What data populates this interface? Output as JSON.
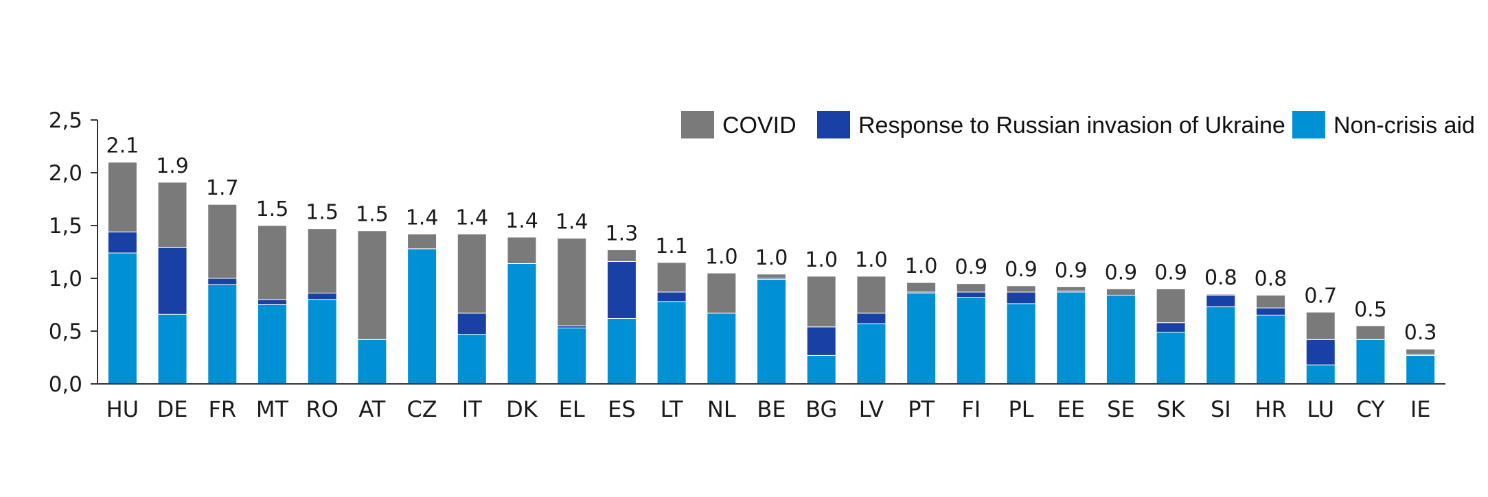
{
  "chart_data": {
    "type": "bar",
    "stacked": true,
    "title": "",
    "xlabel": "",
    "ylabel": "",
    "ylim": [
      0,
      2.5
    ],
    "y_ticks": [
      "0,0",
      "0,5",
      "1,0",
      "1,5",
      "2,0",
      "2,5"
    ],
    "grid": false,
    "legend_position": "top-right",
    "categories": [
      "HU",
      "DE",
      "FR",
      "MT",
      "RO",
      "AT",
      "CZ",
      "IT",
      "DK",
      "EL",
      "ES",
      "LT",
      "NL",
      "BE",
      "BG",
      "LV",
      "PT",
      "FI",
      "PL",
      "EE",
      "SE",
      "SK",
      "SI",
      "HR",
      "LU",
      "CY",
      "IE"
    ],
    "totals": [
      "2.1",
      "1.9",
      "1.7",
      "1.5",
      "1.5",
      "1.5",
      "1.4",
      "1.4",
      "1.4",
      "1.4",
      "1.3",
      "1.1",
      "1.0",
      "1.0",
      "1.0",
      "1.0",
      "1.0",
      "0.9",
      "0.9",
      "0.9",
      "0.9",
      "0.9",
      "0.8",
      "0.8",
      "0.7",
      "0.5",
      "0.3"
    ],
    "series": [
      {
        "name": "Non-crisis aid",
        "color": "#0091d5",
        "values": [
          1.24,
          0.66,
          0.94,
          0.75,
          0.8,
          0.42,
          1.28,
          0.47,
          1.14,
          0.53,
          0.62,
          0.78,
          0.67,
          0.99,
          0.27,
          0.57,
          0.86,
          0.82,
          0.76,
          0.87,
          0.84,
          0.49,
          0.73,
          0.65,
          0.18,
          0.42,
          0.27
        ]
      },
      {
        "name": "Response to Russian invasion of Ukraine",
        "color": "#1941a5",
        "values": [
          0.2,
          0.63,
          0.06,
          0.05,
          0.06,
          0.0,
          0.0,
          0.2,
          0.0,
          0.02,
          0.54,
          0.09,
          0.0,
          0.01,
          0.27,
          0.1,
          0.01,
          0.05,
          0.11,
          0.01,
          0.0,
          0.09,
          0.11,
          0.07,
          0.24,
          0.0,
          0.01
        ]
      },
      {
        "name": "COVID",
        "color": "#7a7a7a",
        "values": [
          0.66,
          0.62,
          0.7,
          0.7,
          0.61,
          1.03,
          0.14,
          0.75,
          0.25,
          0.83,
          0.11,
          0.28,
          0.38,
          0.04,
          0.48,
          0.35,
          0.09,
          0.08,
          0.06,
          0.04,
          0.06,
          0.32,
          0.01,
          0.12,
          0.26,
          0.13,
          0.05
        ]
      }
    ]
  }
}
